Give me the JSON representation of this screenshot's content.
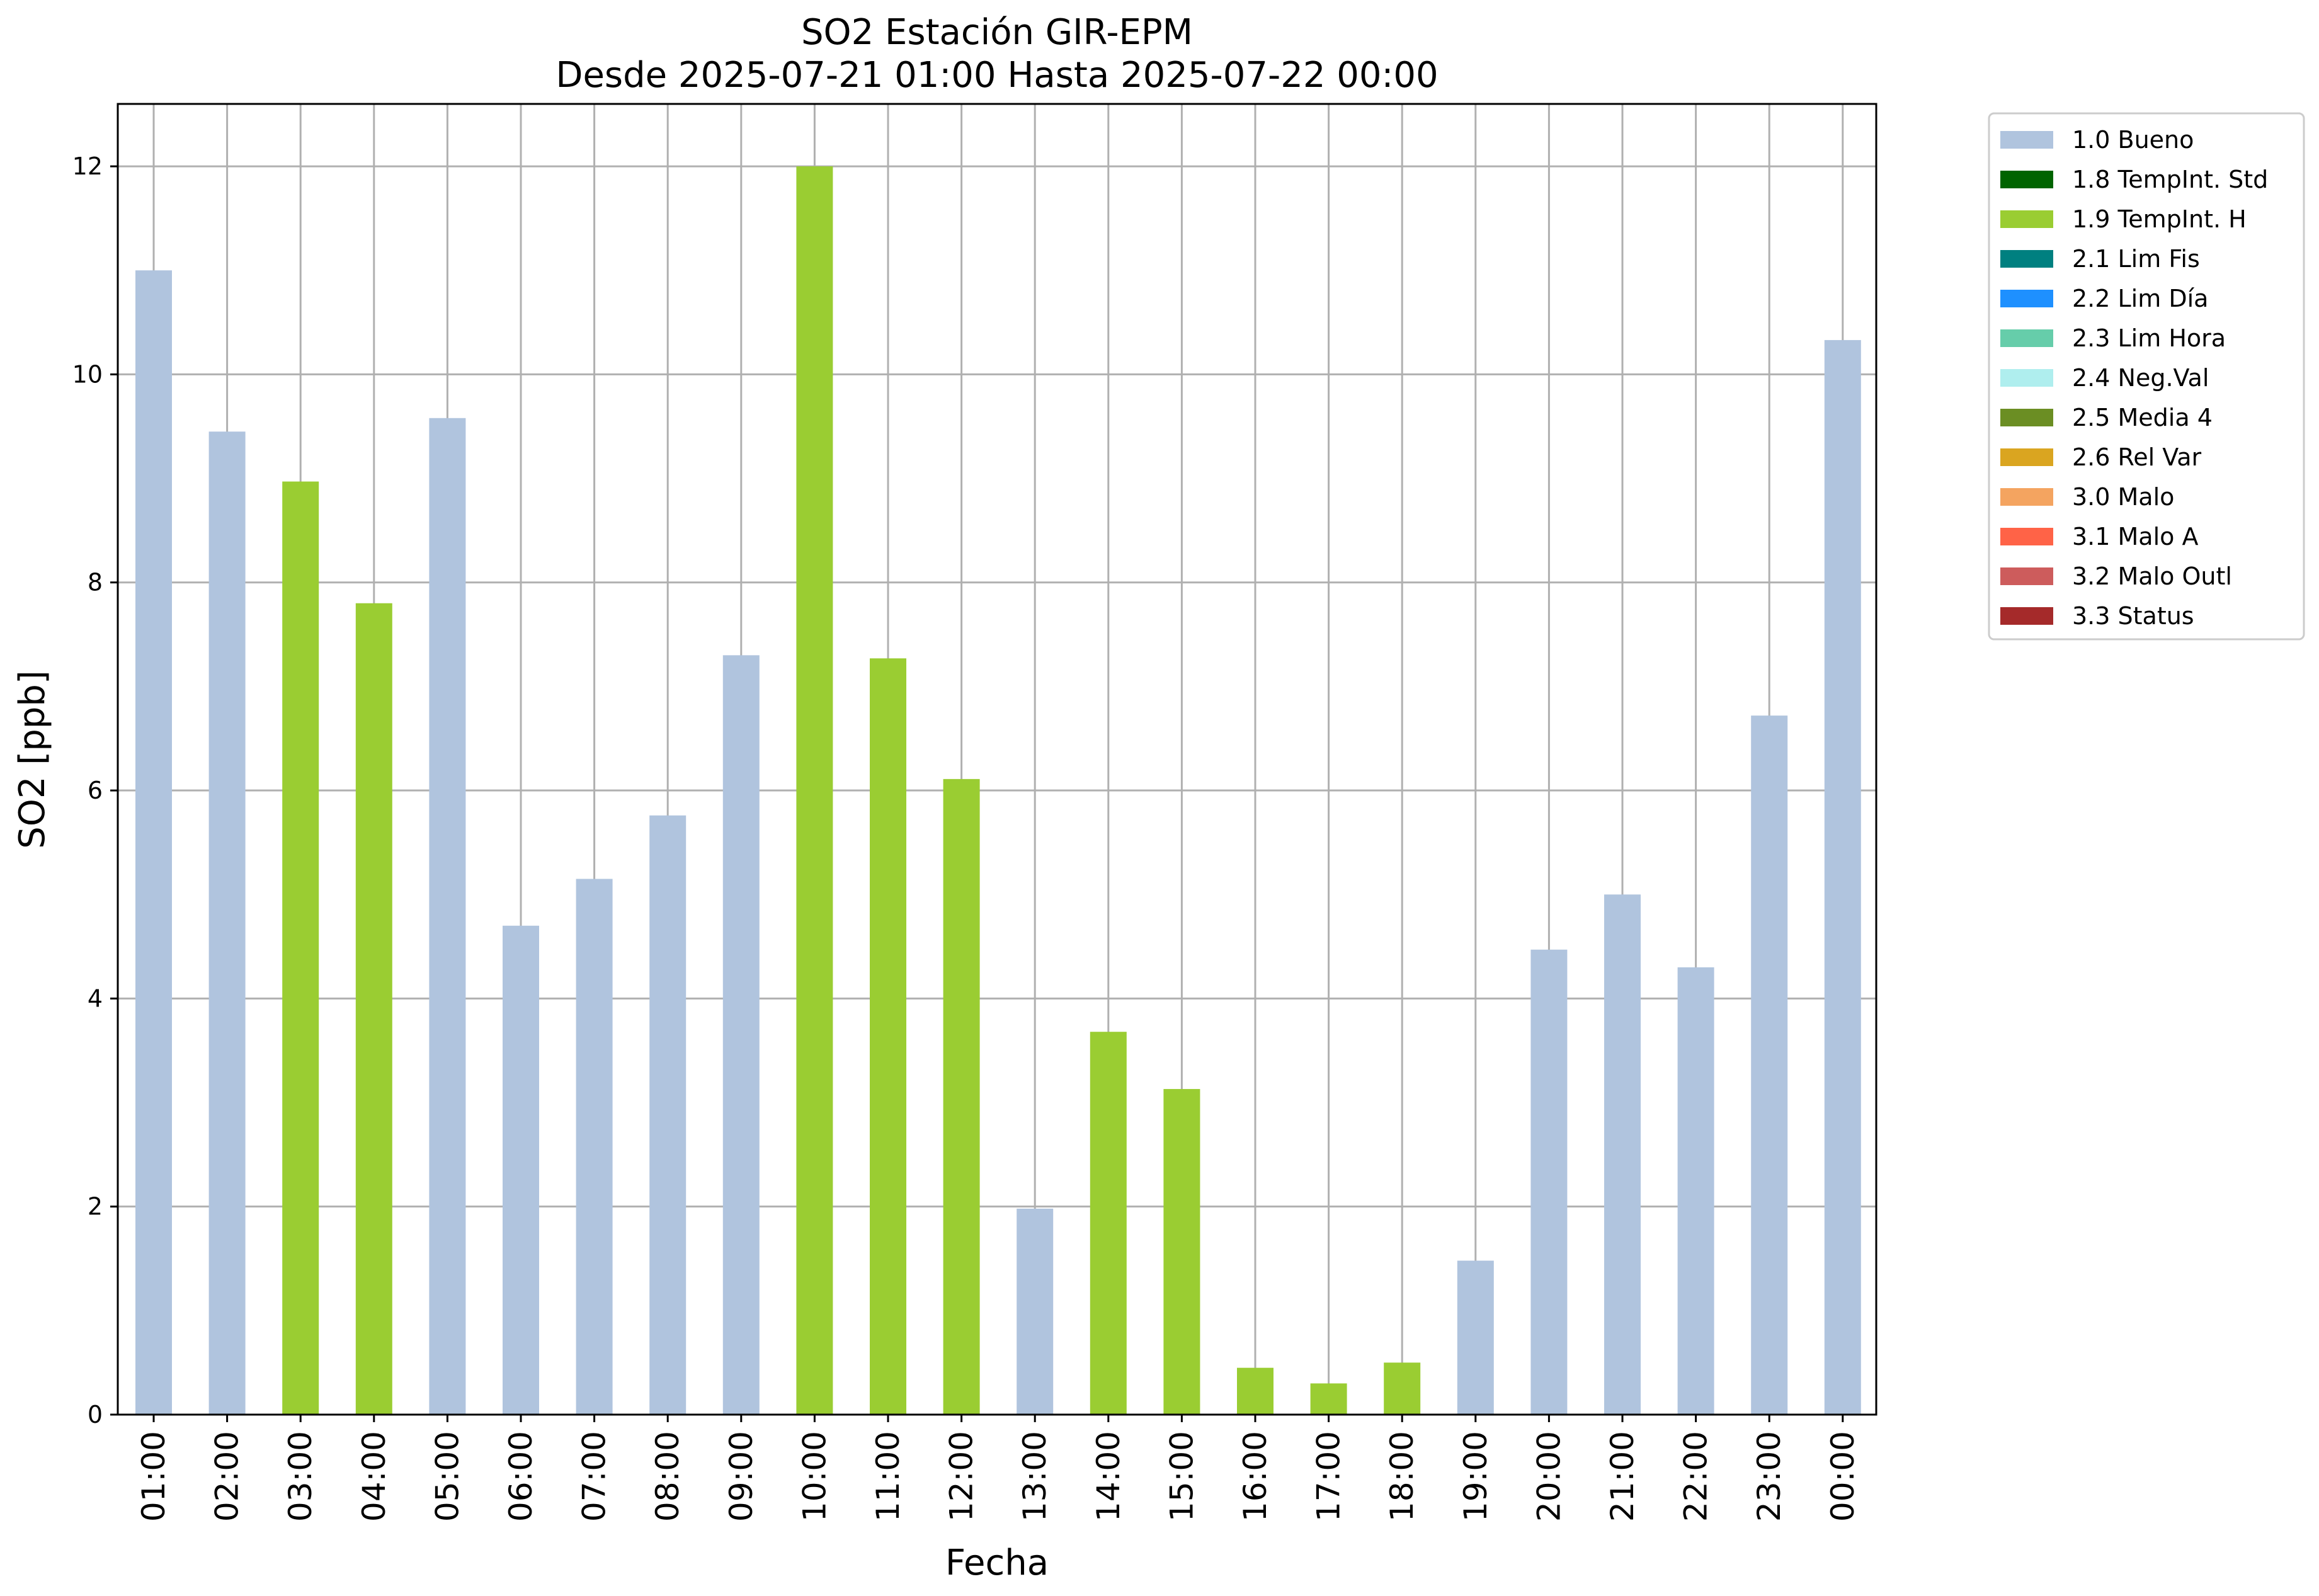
{
  "chart_data": {
    "type": "bar",
    "title": "SO2 Estación GIR-EPM",
    "subtitle": "Desde 2025-07-21 01:00 Hasta 2025-07-22 00:00",
    "xlabel": "Fecha",
    "ylabel": "SO2 [ppb]",
    "ylim": [
      0,
      12.6
    ],
    "yticks": [
      0,
      2,
      4,
      6,
      8,
      10,
      12
    ],
    "grid": true,
    "legend_position": "outside top-right",
    "categories": [
      "01:00",
      "02:00",
      "03:00",
      "04:00",
      "05:00",
      "06:00",
      "07:00",
      "08:00",
      "09:00",
      "10:00",
      "11:00",
      "12:00",
      "13:00",
      "14:00",
      "15:00",
      "16:00",
      "17:00",
      "18:00",
      "19:00",
      "20:00",
      "21:00",
      "22:00",
      "23:00",
      "00:00"
    ],
    "values": [
      11.0,
      9.45,
      8.97,
      7.8,
      9.58,
      4.7,
      5.15,
      5.76,
      7.3,
      12.0,
      7.27,
      6.11,
      1.98,
      3.68,
      3.13,
      0.45,
      0.3,
      0.5,
      1.48,
      4.47,
      5.0,
      4.3,
      6.72,
      10.33
    ],
    "flags": [
      "1.0 Bueno",
      "1.0 Bueno",
      "1.9 TempInt. H",
      "1.9 TempInt. H",
      "1.0 Bueno",
      "1.0 Bueno",
      "1.0 Bueno",
      "1.0 Bueno",
      "1.0 Bueno",
      "1.9 TempInt. H",
      "1.9 TempInt. H",
      "1.9 TempInt. H",
      "1.0 Bueno",
      "1.9 TempInt. H",
      "1.9 TempInt. H",
      "1.9 TempInt. H",
      "1.9 TempInt. H",
      "1.9 TempInt. H",
      "1.0 Bueno",
      "1.0 Bueno",
      "1.0 Bueno",
      "1.0 Bueno",
      "1.0 Bueno",
      "1.0 Bueno"
    ],
    "legend": [
      {
        "name": "1.0 Bueno",
        "color": "#b0c4de"
      },
      {
        "name": "1.8 TempInt. Std",
        "color": "#006400"
      },
      {
        "name": "1.9 TempInt. H",
        "color": "#9acd32"
      },
      {
        "name": "2.1 Lim Fis",
        "color": "#008080"
      },
      {
        "name": "2.2 Lim Día",
        "color": "#1e90ff"
      },
      {
        "name": "2.3 Lim Hora",
        "color": "#66cdaa"
      },
      {
        "name": "2.4 Neg.Val",
        "color": "#afeeee"
      },
      {
        "name": "2.5 Media 4",
        "color": "#6b8e23"
      },
      {
        "name": "2.6 Rel Var",
        "color": "#daa520"
      },
      {
        "name": "3.0 Malo",
        "color": "#f4a460"
      },
      {
        "name": "3.1 Malo A",
        "color": "#ff6347"
      },
      {
        "name": "3.2 Malo Outl",
        "color": "#cd5c5c"
      },
      {
        "name": "3.3 Status",
        "color": "#a52a2a"
      }
    ]
  }
}
